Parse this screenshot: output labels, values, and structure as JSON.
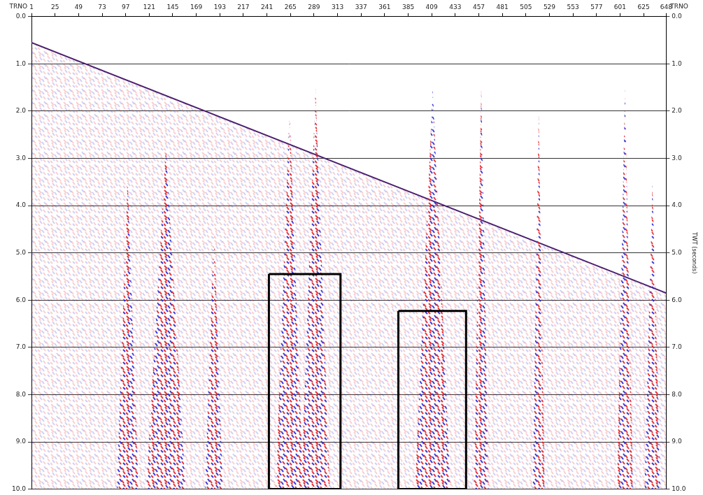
{
  "chart_data": {
    "type": "line",
    "x_label": "TRNO",
    "y_label": "TWT (seconds)",
    "xlim": [
      1,
      648
    ],
    "xticks": [
      1,
      25,
      49,
      73,
      97,
      121,
      145,
      169,
      193,
      217,
      241,
      265,
      289,
      313,
      337,
      361,
      385,
      409,
      433,
      457,
      481,
      505,
      529,
      553,
      577,
      601,
      625,
      648
    ],
    "ylim": [
      0,
      10
    ],
    "yticks": [
      {
        "value": 0,
        "label": "0.0"
      },
      {
        "value": 1,
        "label": "1.0"
      },
      {
        "value": 2,
        "label": "2.0"
      },
      {
        "value": 3,
        "label": "3.0"
      },
      {
        "value": 4,
        "label": "4.0"
      },
      {
        "value": 5,
        "label": "5.0"
      },
      {
        "value": 6,
        "label": "6.0"
      },
      {
        "value": 7,
        "label": "7.0"
      },
      {
        "value": 8,
        "label": "8.0"
      },
      {
        "value": 9,
        "label": "9.0"
      },
      {
        "value": 10,
        "label": "10.0"
      }
    ],
    "grid": true,
    "color": "#4b1f6f",
    "colors": [
      "#e0242a",
      "#2a2ad6"
    ],
    "first_break": {
      "x": [
        1,
        648
      ],
      "values": [
        0.55,
        5.85
      ]
    },
    "bursts": [
      {
        "x": [
          88,
          110
        ],
        "t": 3.5
      },
      {
        "x": [
          118,
          158
        ],
        "t": 2.8
      },
      {
        "x": [
          178,
          196
        ],
        "t": 4.5
      },
      {
        "x": [
          250,
          278
        ],
        "t": 2.0
      },
      {
        "x": [
          276,
          305
        ],
        "t": 1.5
      },
      {
        "x": [
          392,
          428
        ],
        "t": 1.5
      },
      {
        "x": [
          452,
          467
        ],
        "t": 1.5
      },
      {
        "x": [
          512,
          524
        ],
        "t": 2.0
      },
      {
        "x": [
          598,
          614
        ],
        "t": 1.5
      },
      {
        "x": [
          626,
          642
        ],
        "t": 3.5
      }
    ],
    "boxes": [
      {
        "x": [
          243,
          316
        ],
        "y": [
          5.45,
          10
        ]
      },
      {
        "x": [
          375,
          444
        ],
        "y": [
          6.23,
          10
        ]
      }
    ]
  }
}
